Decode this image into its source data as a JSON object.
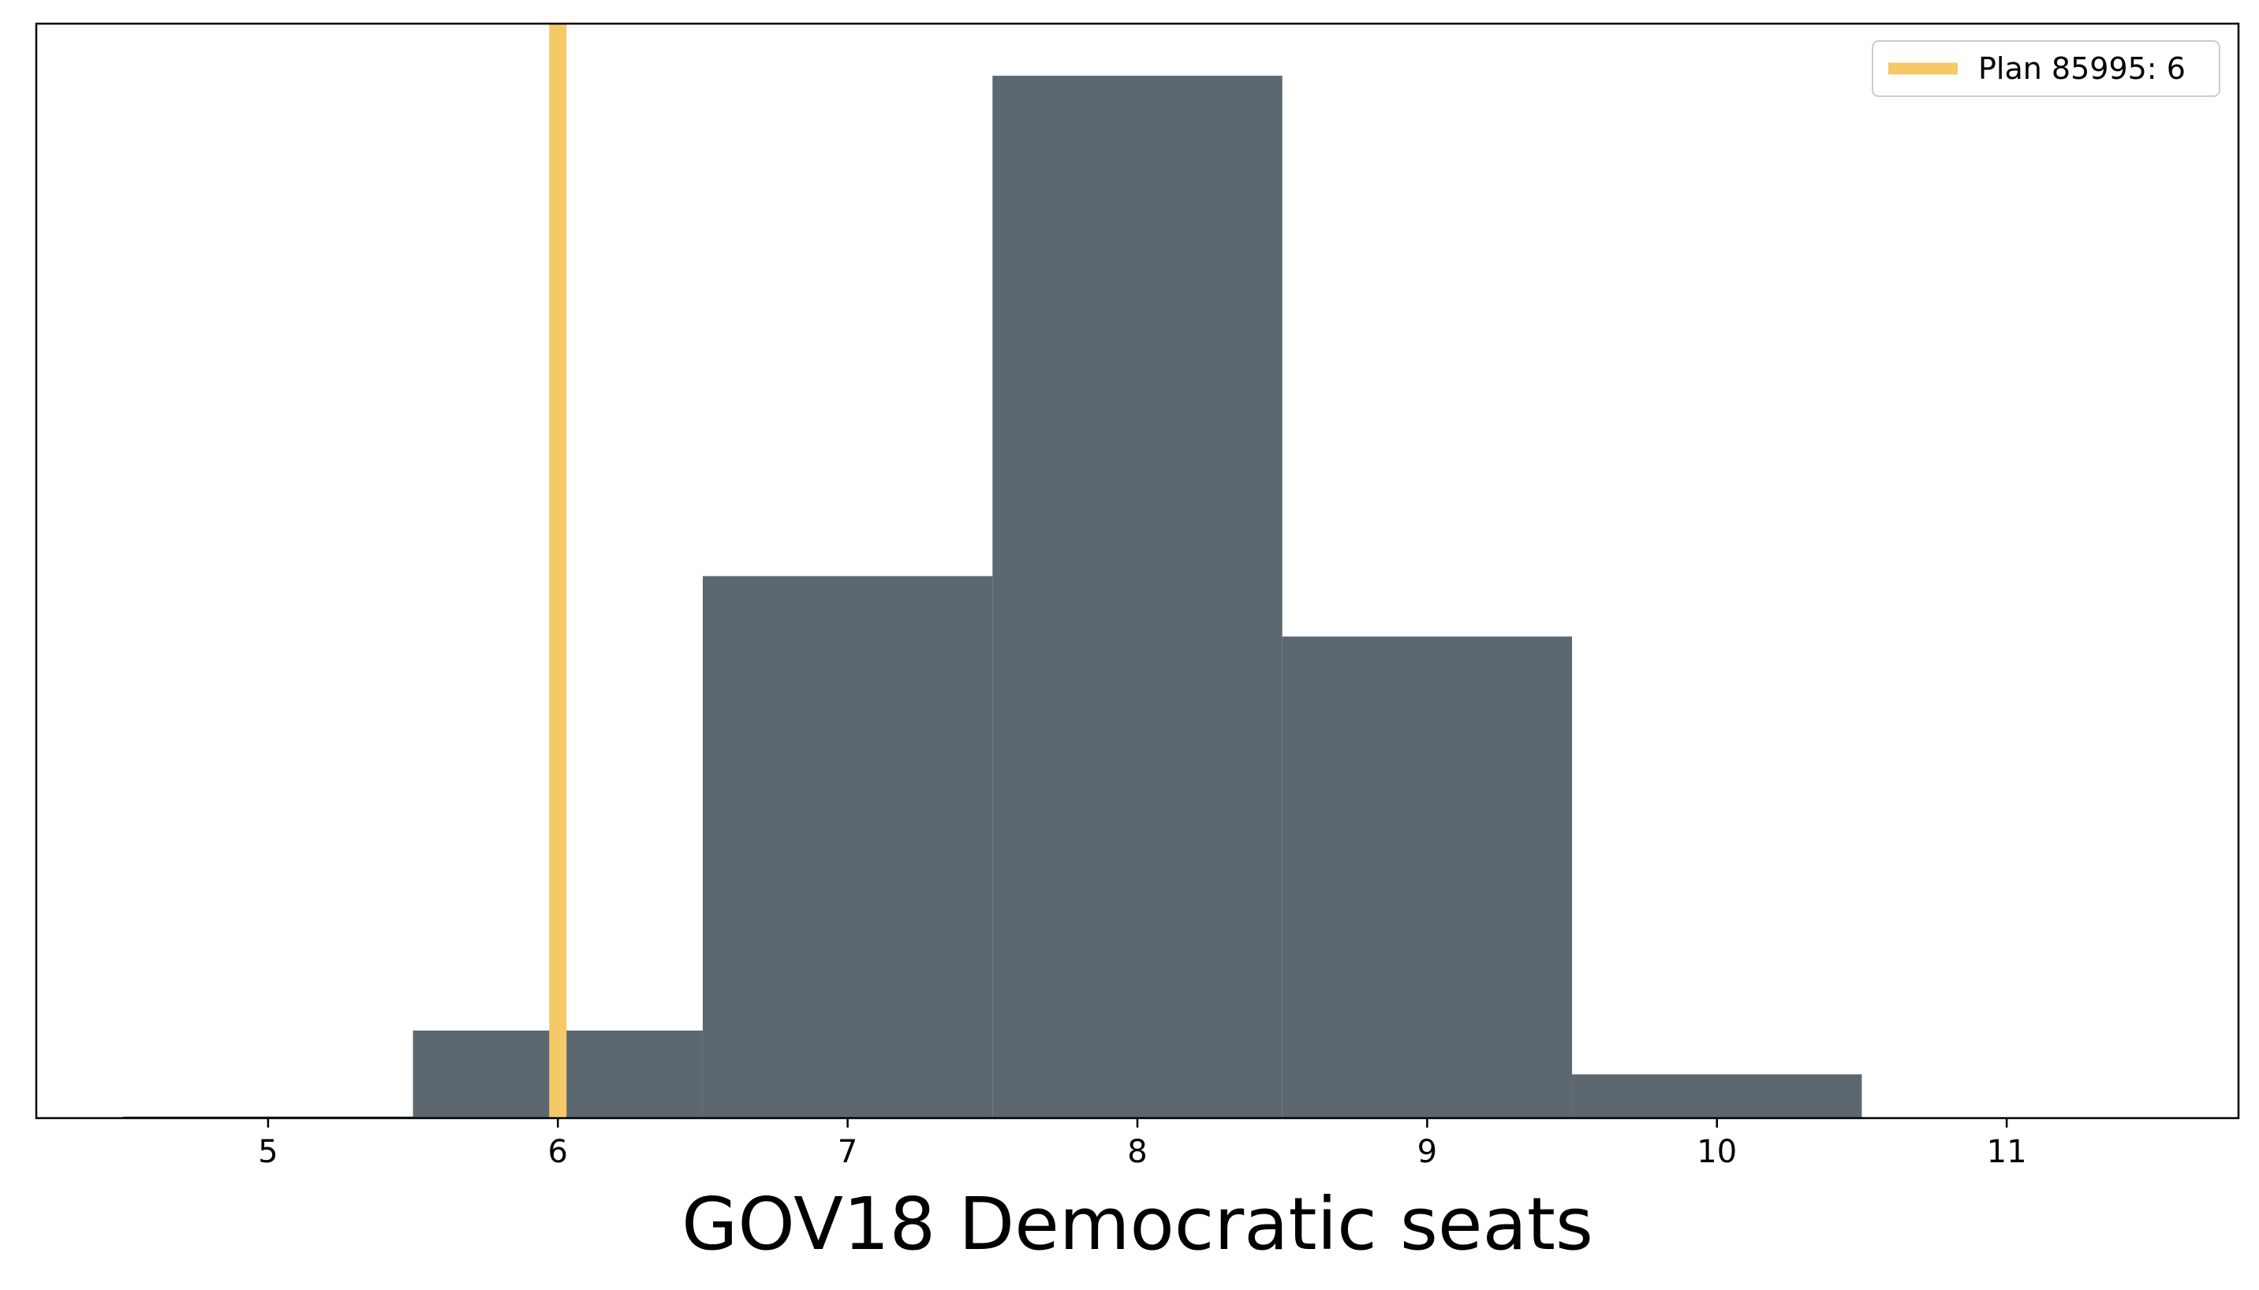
{
  "chart_data": {
    "type": "bar",
    "subtype": "histogram",
    "xlabel": "GOV18 Democratic seats",
    "ylabel": "",
    "xlim": [
      4.2,
      11.8
    ],
    "ylim": [
      0,
      1.05
    ],
    "xticks": [
      5,
      6,
      7,
      8,
      9,
      10,
      11
    ],
    "yticks_visible": false,
    "grid": false,
    "bin_edges": [
      4.5,
      5.5,
      6.5,
      7.5,
      8.5,
      9.5,
      10.5
    ],
    "bins": [
      {
        "x_start": 4.5,
        "x_end": 5.5,
        "center": 5,
        "value": 0.0
      },
      {
        "x_start": 5.5,
        "x_end": 6.5,
        "center": 6,
        "value": 0.084
      },
      {
        "x_start": 6.5,
        "x_end": 7.5,
        "center": 7,
        "value": 0.52
      },
      {
        "x_start": 7.5,
        "x_end": 8.5,
        "center": 8,
        "value": 1.0
      },
      {
        "x_start": 8.5,
        "x_end": 9.5,
        "center": 9,
        "value": 0.462
      },
      {
        "x_start": 9.5,
        "x_end": 10.5,
        "center": 10,
        "value": 0.042
      }
    ],
    "bar_color": "#5c6770",
    "reference_line": {
      "x": 6,
      "color": "#f5c968",
      "label": "Plan 85995: 6"
    },
    "legend": {
      "placement": "top-right",
      "entries": [
        {
          "label": "Plan 85995: 6",
          "color": "#f5c968"
        }
      ]
    }
  }
}
